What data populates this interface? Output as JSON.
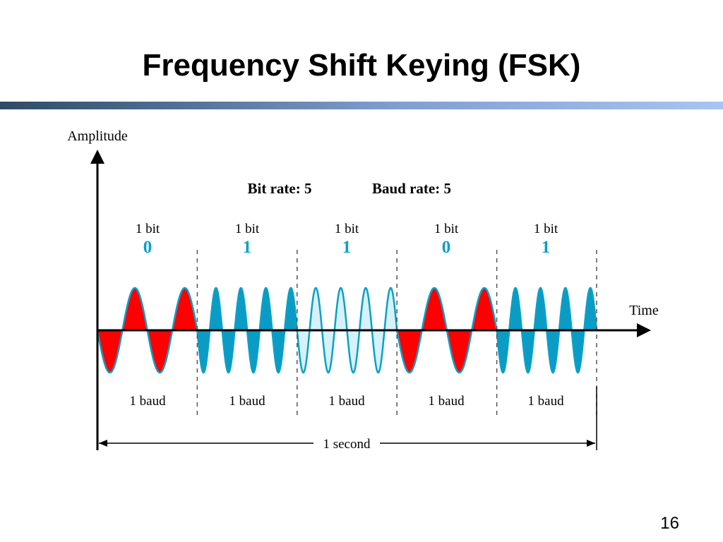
{
  "slide": {
    "title": "Frequency Shift Keying (FSK)",
    "page_number": "16"
  },
  "diagram": {
    "axis_y_label": "Amplitude",
    "axis_x_label": "Time",
    "bit_rate": "Bit rate: 5",
    "baud_rate": "Baud rate: 5",
    "duration_label": "1 second",
    "bit_caption": "1 bit",
    "baud_caption": "1 baud",
    "bits": [
      "0",
      "1",
      "1",
      "0",
      "1"
    ],
    "colors": {
      "bit0_fill": "#ff0000",
      "bit0_stroke": "#0aa0c8",
      "bit1_solid_fill": "#0a9cc4",
      "bit1_light_fill": "#d6f2f8",
      "bit1_stroke": "#0aa0c8",
      "bit_value_text": "#0aa0c8",
      "axis": "#000000"
    }
  }
}
